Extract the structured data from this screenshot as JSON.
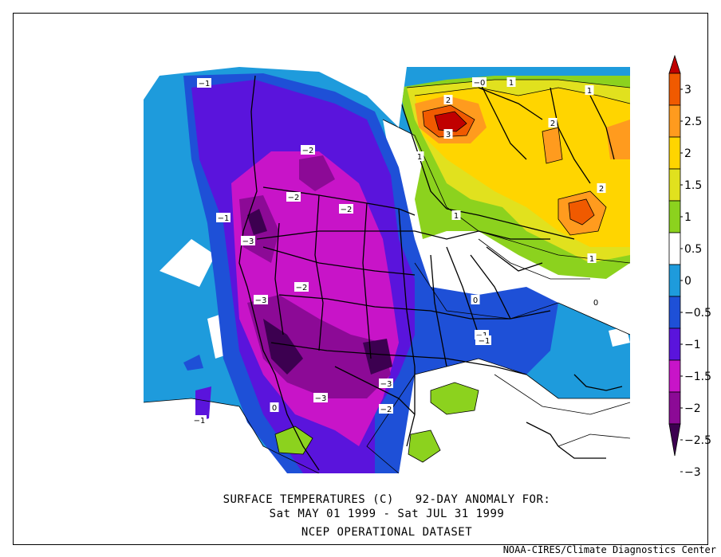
{
  "title": {
    "line1": "SURFACE TEMPERATURES (C)   92-DAY ANOMALY FOR:",
    "line2": "Sat MAY 01 1999 - Sat JUL 31 1999",
    "line3": "NCEP OPERATIONAL DATASET"
  },
  "credit": "NOAA-CIRES/Climate Diagnostics Center",
  "colorbar": {
    "labels": [
      "3",
      "2.5",
      "2",
      "1.5",
      "1",
      "0.5",
      "0",
      "-0.5",
      "-1",
      "-1.5",
      "-2",
      "-2.5",
      "-3"
    ],
    "colors": [
      "#c00000",
      "#f05a00",
      "#ff9b1e",
      "#ffd500",
      "#e1e11e",
      "#8cd21e",
      "#ffffff",
      "#1e9bdc",
      "#1e50d7",
      "#5a14dc",
      "#c814c8",
      "#8c0a96",
      "#3c0050"
    ]
  },
  "contour_labels": [
    "-1",
    "-1",
    "-1",
    "-1",
    "-2",
    "-2",
    "-2",
    "-2",
    "-3",
    "-3",
    "-3",
    "-3",
    "-2",
    "-1",
    "1",
    "1",
    "1",
    "2",
    "2",
    "2",
    "3",
    "-0",
    "0",
    "0",
    "0",
    "1",
    "1",
    "-1"
  ]
}
